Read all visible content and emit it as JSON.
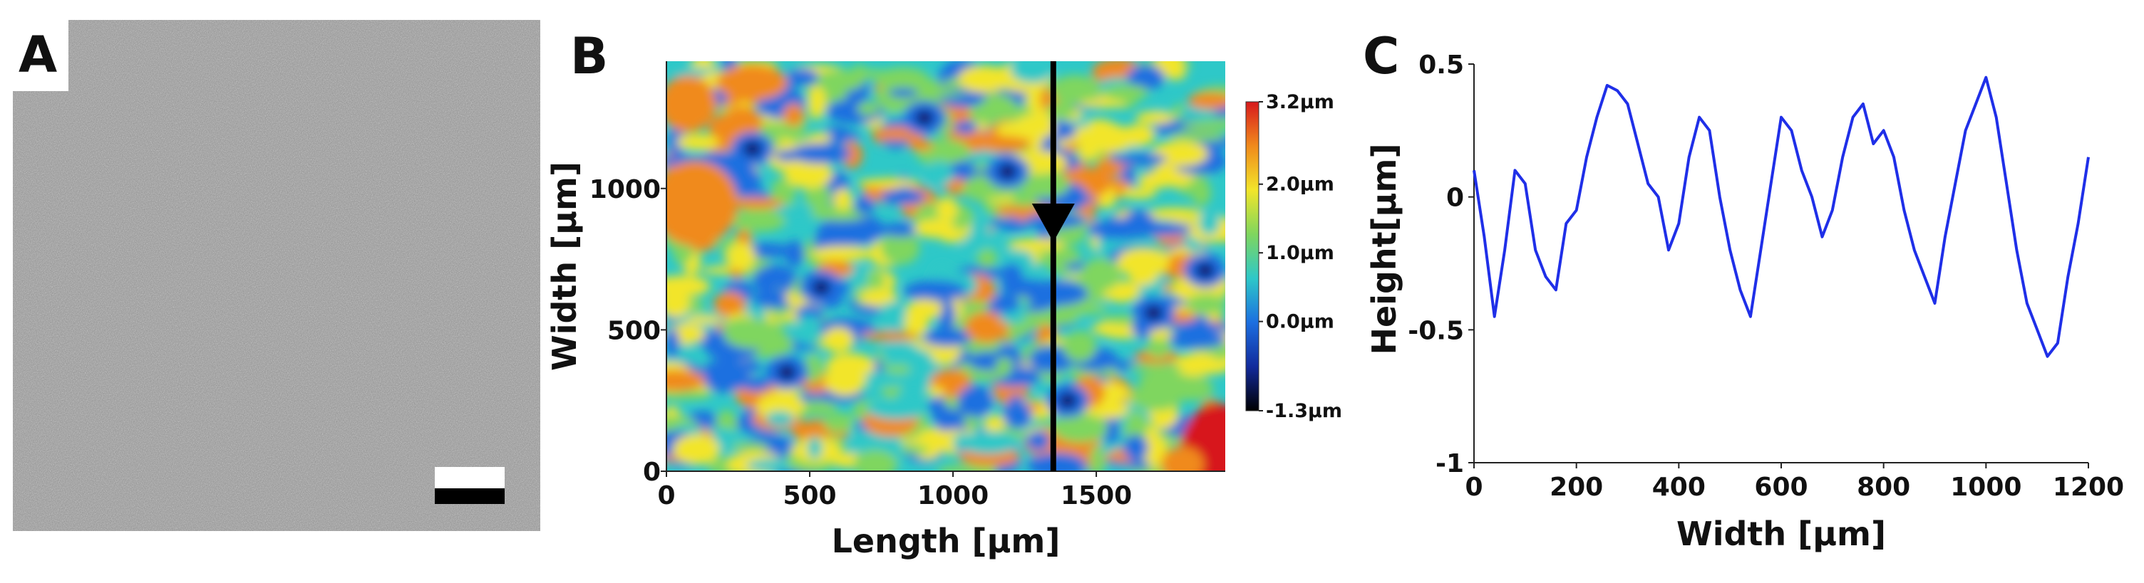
{
  "panels": {
    "a": {
      "letter": "A"
    },
    "b": {
      "letter": "B"
    },
    "c": {
      "letter": "C"
    }
  },
  "chart_data": [
    {
      "type": "heatmap",
      "panel": "B",
      "xlabel": "Length [µm]",
      "ylabel": "Width [µm]",
      "xlim": [
        0,
        1950
      ],
      "ylim": [
        0,
        1450
      ],
      "xticks": [
        "0",
        "500",
        "1000",
        "1500"
      ],
      "yticks": [
        "0",
        "500",
        "1000"
      ],
      "colorbar": {
        "labels": [
          "3.2µm",
          "2.0µm",
          "1.0µm",
          "0.0µm",
          "-1.3µm"
        ],
        "values": [
          3.2,
          2.0,
          1.0,
          0.0,
          -1.3
        ],
        "colors": [
          "#d7191c",
          "#f08a1c",
          "#f2e52a",
          "#7fd65e",
          "#2ec8c8",
          "#1c6fe0",
          "#122a9c",
          "#000000"
        ]
      },
      "profile_line_x": 1350,
      "arrow_direction": "down"
    },
    {
      "type": "line",
      "panel": "C",
      "xlabel": "Width [µm]",
      "ylabel": "Height[µm]",
      "xlim": [
        0,
        1200
      ],
      "ylim": [
        -1,
        0.5
      ],
      "xticks": [
        "0",
        "200",
        "400",
        "600",
        "800",
        "1000",
        "1200"
      ],
      "yticks": [
        "0.5",
        "0",
        "-0.5",
        "-1"
      ],
      "series": [
        {
          "color": "#1f2fe8",
          "x": [
            0,
            20,
            40,
            60,
            80,
            100,
            120,
            140,
            160,
            180,
            200,
            220,
            240,
            260,
            280,
            300,
            320,
            340,
            360,
            380,
            400,
            420,
            440,
            460,
            480,
            500,
            520,
            540,
            560,
            580,
            600,
            620,
            640,
            660,
            680,
            700,
            720,
            740,
            760,
            780,
            800,
            820,
            840,
            860,
            880,
            900,
            920,
            940,
            960,
            980,
            1000,
            1020,
            1040,
            1060,
            1080,
            1100,
            1120,
            1140,
            1160,
            1180,
            1200
          ],
          "y": [
            0.1,
            -0.15,
            -0.45,
            -0.2,
            0.1,
            0.05,
            -0.2,
            -0.3,
            -0.35,
            -0.1,
            -0.05,
            0.15,
            0.3,
            0.42,
            0.4,
            0.35,
            0.2,
            0.05,
            0.0,
            -0.2,
            -0.1,
            0.15,
            0.3,
            0.25,
            0.0,
            -0.2,
            -0.35,
            -0.45,
            -0.2,
            0.05,
            0.3,
            0.25,
            0.1,
            0.0,
            -0.15,
            -0.05,
            0.15,
            0.3,
            0.35,
            0.2,
            0.25,
            0.15,
            -0.05,
            -0.2,
            -0.3,
            -0.4,
            -0.15,
            0.05,
            0.25,
            0.35,
            0.45,
            0.3,
            0.05,
            -0.2,
            -0.4,
            -0.5,
            -0.6,
            -0.55,
            -0.3,
            -0.1,
            0.15
          ]
        }
      ]
    }
  ]
}
